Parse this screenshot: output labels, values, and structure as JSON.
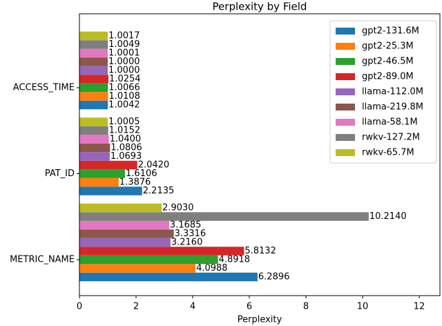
{
  "chart_data": {
    "type": "hbar",
    "title": "Perplexity by Field",
    "xlabel": "Perplexity",
    "categories": [
      "METRIC_NAME",
      "PAT_ID",
      "ACCESS_TIME"
    ],
    "xlim": [
      0,
      12.73
    ],
    "xticks": [
      0,
      2,
      4,
      6,
      8,
      10,
      12
    ],
    "legend": "upper right",
    "series": [
      {
        "name": "gpt2-131.6M",
        "color": "#1f77b4",
        "values": [
          6.2896,
          2.2135,
          1.0042
        ],
        "value_labels": [
          "6.2896",
          "2.2135",
          "1.0042"
        ]
      },
      {
        "name": "gpt2-25.3M",
        "color": "#ff7f0e",
        "values": [
          4.0988,
          1.3876,
          1.0108
        ],
        "value_labels": [
          "4.0988",
          "1.3876",
          "1.0108"
        ]
      },
      {
        "name": "gpt2-46.5M",
        "color": "#2ca02c",
        "values": [
          4.8918,
          1.6106,
          1.0066
        ],
        "value_labels": [
          "4.8918",
          "1.6106",
          "1.0066"
        ]
      },
      {
        "name": "gpt2-89.0M",
        "color": "#d62728",
        "values": [
          5.8132,
          2.042,
          1.0254
        ],
        "value_labels": [
          "5.8132",
          "2.0420",
          "1.0254"
        ]
      },
      {
        "name": "llama-112.0M",
        "color": "#9467bd",
        "values": [
          3.216,
          1.0693,
          1
        ],
        "value_labels": [
          "3.2160",
          "1.0693",
          "1.0000"
        ]
      },
      {
        "name": "llama-219.8M",
        "color": "#8c564b",
        "values": [
          3.3316,
          1.0806,
          1
        ],
        "value_labels": [
          "3.3316",
          "1.0806",
          "1.0000"
        ]
      },
      {
        "name": "llama-58.1M",
        "color": "#e377c2",
        "values": [
          3.1685,
          1.04,
          1.0001
        ],
        "value_labels": [
          "3.1685",
          "1.0400",
          "1.0001"
        ]
      },
      {
        "name": "rwkv-127.2M",
        "color": "#7f7f7f",
        "values": [
          10.214,
          1.0152,
          1.0049
        ],
        "value_labels": [
          "10.2140",
          "1.0152",
          "1.0049"
        ]
      },
      {
        "name": "rwkv-65.7M",
        "color": "#bcbd22",
        "values": [
          2.903,
          1.0005,
          1.0017
        ],
        "value_labels": [
          "2.9030",
          "1.0005",
          "1.0017"
        ]
      }
    ]
  }
}
